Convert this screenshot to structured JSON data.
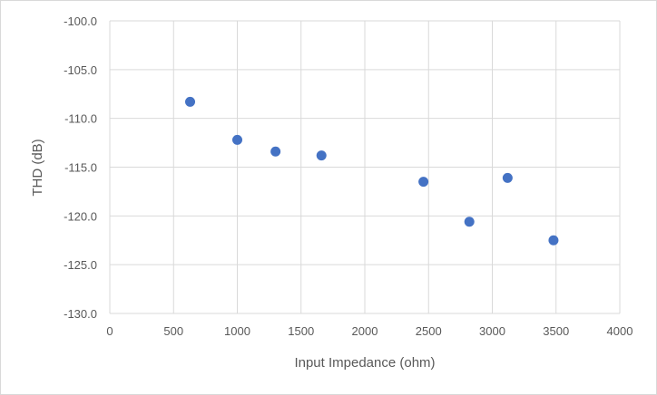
{
  "chart_data": {
    "type": "scatter",
    "title": "",
    "xlabel": "Input Impedance (ohm)",
    "ylabel": "THD (dB)",
    "xlim": [
      0,
      4000
    ],
    "ylim": [
      -130,
      -100
    ],
    "x_ticks": [
      "0",
      "500",
      "1000",
      "1500",
      "2000",
      "2500",
      "3000",
      "3500",
      "4000"
    ],
    "y_ticks": [
      "-100.0",
      "-105.0",
      "-110.0",
      "-115.0",
      "-120.0",
      "-125.0",
      "-130.0"
    ],
    "grid": true,
    "legend": "none",
    "marker_color": "#4472c4",
    "points": [
      {
        "x": 630,
        "y": -108.3
      },
      {
        "x": 1000,
        "y": -112.2
      },
      {
        "x": 1300,
        "y": -113.4
      },
      {
        "x": 1660,
        "y": -113.8
      },
      {
        "x": 2460,
        "y": -116.5
      },
      {
        "x": 2820,
        "y": -120.6
      },
      {
        "x": 3120,
        "y": -116.1
      },
      {
        "x": 3480,
        "y": -122.5
      }
    ]
  }
}
